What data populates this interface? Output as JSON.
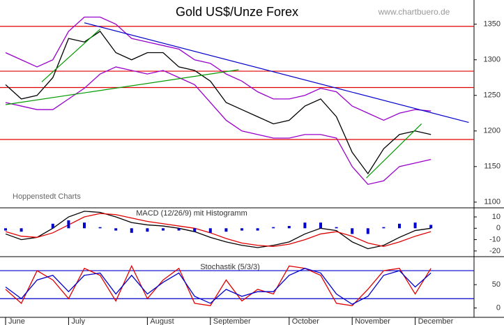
{
  "chart_data": [
    {
      "type": "line",
      "title": "Gold US$/Unze Forex",
      "source": "www.chartbuero.de",
      "watermark": "Hoppenstedt Charts",
      "categories": [
        "June",
        null,
        null,
        null,
        "July",
        null,
        null,
        null,
        null,
        "August",
        null,
        null,
        null,
        "September",
        null,
        null,
        null,
        null,
        "October",
        null,
        null,
        null,
        "November",
        null,
        null,
        null,
        "December",
        null
      ],
      "series": [
        {
          "color": "#000000",
          "values": [
            1265,
            1245,
            1250,
            1275,
            1330,
            1325,
            1340,
            1310,
            1300,
            1310,
            1310,
            1290,
            1285,
            1270,
            1240,
            1230,
            1220,
            1210,
            1215,
            1235,
            1245,
            1220,
            1170,
            1140,
            1175,
            1195,
            1200,
            1195
          ]
        },
        {
          "color": "#9900cc",
          "values": [
            1310,
            1300,
            1290,
            1300,
            1340,
            1360,
            1360,
            1350,
            1330,
            1325,
            1320,
            1315,
            1300,
            1295,
            1280,
            1270,
            1255,
            1245,
            1245,
            1250,
            1260,
            1255,
            1235,
            1225,
            1215,
            1225,
            1230,
            1228
          ]
        },
        {
          "color": "#9900cc",
          "values": [
            1240,
            1235,
            1230,
            1230,
            1245,
            1260,
            1280,
            1290,
            1285,
            1280,
            1285,
            1275,
            1265,
            1240,
            1215,
            1200,
            1195,
            1190,
            1190,
            1195,
            1195,
            1190,
            1150,
            1125,
            1130,
            1150,
            1155,
            1160
          ]
        }
      ],
      "hlines": [
        1347,
        1284,
        1261,
        1188
      ],
      "hline_color": "#e00000",
      "trendlines": [
        {
          "color": "#0000cc",
          "x": [
            5,
            29.4
          ],
          "values": [
            1352,
            1212
          ]
        },
        {
          "color": "#009900",
          "x": [
            0,
            14.8
          ],
          "values": [
            1237,
            1286
          ]
        },
        {
          "color": "#009900",
          "x": [
            2.3,
            6
          ],
          "values": [
            1269,
            1343
          ]
        },
        {
          "color": "#009900",
          "x": [
            22.9,
            26.4
          ],
          "values": [
            1134,
            1210
          ]
        }
      ],
      "ylim": [
        1092,
        1384
      ],
      "yticks": [
        1100,
        1150,
        1200,
        1250,
        1300,
        1350
      ]
    },
    {
      "type": "line",
      "title": "MACD (12/26/9) mit Histogramm",
      "series": [
        {
          "color": "#000000",
          "values": [
            -5,
            -10,
            -8,
            0,
            10,
            15,
            14,
            10,
            5,
            3,
            2,
            0,
            -3,
            -8,
            -12,
            -15,
            -17,
            -15,
            -12,
            -5,
            0,
            -2,
            -12,
            -18,
            -15,
            -8,
            -2,
            0
          ]
        },
        {
          "color": "#e00000",
          "values": [
            -3,
            -7,
            -8,
            -4,
            3,
            10,
            13,
            12,
            9,
            6,
            4,
            2,
            0,
            -4,
            -9,
            -13,
            -15,
            -16,
            -14,
            -10,
            -5,
            -3,
            -7,
            -13,
            -16,
            -12,
            -7,
            -3
          ]
        },
        {
          "color": "#0000cc",
          "kind": "histogram",
          "values": [
            -2,
            -3,
            0,
            4,
            7,
            5,
            1,
            -2,
            -4,
            -3,
            -2,
            -2,
            -3,
            -4,
            -3,
            -2,
            -2,
            1,
            2,
            5,
            5,
            1,
            -5,
            -5,
            1,
            4,
            5,
            3
          ]
        }
      ],
      "ylim": [
        -25,
        18
      ],
      "yticks": [
        10,
        0,
        -10,
        -20
      ]
    },
    {
      "type": "line",
      "title": "Stochastik (5/3/3)",
      "series": [
        {
          "color": "#e00000",
          "values": [
            40,
            10,
            80,
            60,
            20,
            85,
            70,
            15,
            90,
            20,
            60,
            85,
            10,
            5,
            60,
            15,
            40,
            30,
            90,
            85,
            70,
            10,
            5,
            40,
            80,
            85,
            30,
            85
          ]
        },
        {
          "color": "#0000cc",
          "values": [
            45,
            20,
            60,
            70,
            35,
            70,
            75,
            30,
            70,
            30,
            55,
            75,
            25,
            10,
            40,
            25,
            35,
            35,
            70,
            85,
            75,
            30,
            8,
            25,
            70,
            80,
            45,
            75
          ]
        }
      ],
      "hlines": [
        80,
        20
      ],
      "hline_color": "#0000cc",
      "ylim": [
        -20,
        110
      ],
      "yticks": [
        50,
        0
      ]
    }
  ]
}
